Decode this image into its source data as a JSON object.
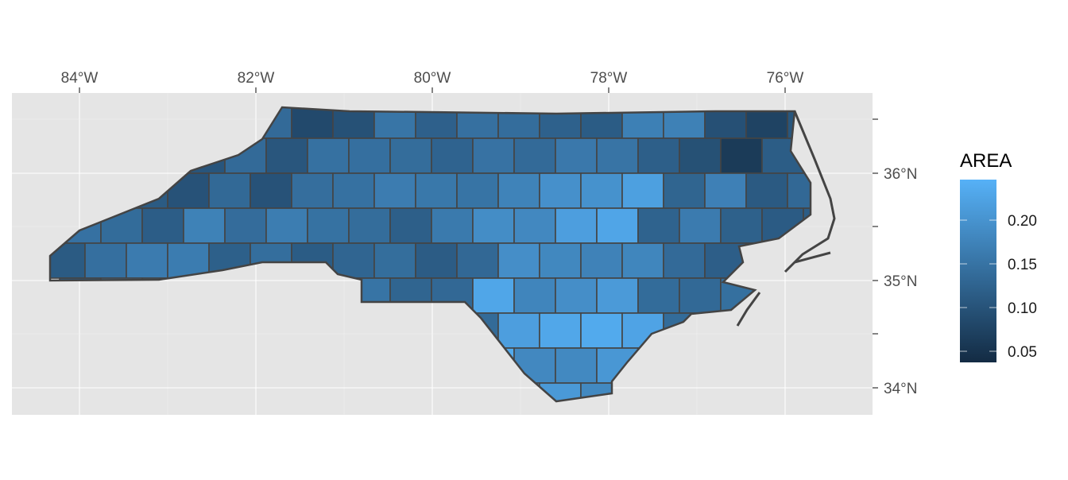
{
  "map": {
    "x_ticks": [
      "84°W",
      "82°W",
      "80°W",
      "78°W",
      "76°W"
    ],
    "y_ticks": [
      "36°N",
      "35°N",
      "34°N"
    ],
    "fill_variable": "AREA",
    "panel_background": "#e5e5e5",
    "border_color": "#444444"
  },
  "legend": {
    "title": "AREA",
    "labels": [
      "0.20",
      "0.15",
      "0.10",
      "0.05"
    ],
    "low_color": "#132b43",
    "high_color": "#56b1f7",
    "range": [
      0.042,
      0.241
    ]
  }
}
